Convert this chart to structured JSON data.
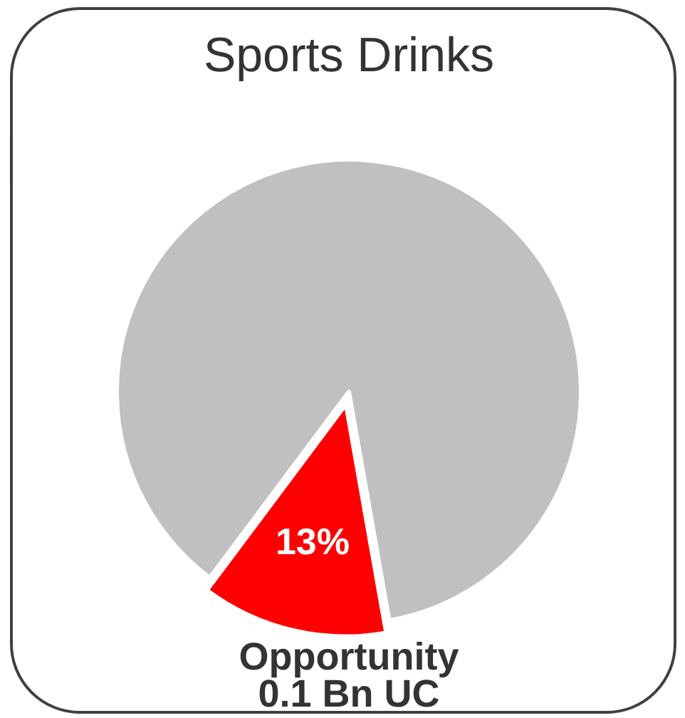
{
  "chart_data": {
    "type": "pie",
    "title": "Sports Drinks",
    "categories": [
      null,
      null
    ],
    "values": [
      13,
      87
    ],
    "colors": [
      "#ff0000",
      "#c0c0c0"
    ],
    "value_labels": [
      "13%",
      null
    ],
    "annotations": [
      "Opportunity\n0.1 Bn UC"
    ]
  }
}
